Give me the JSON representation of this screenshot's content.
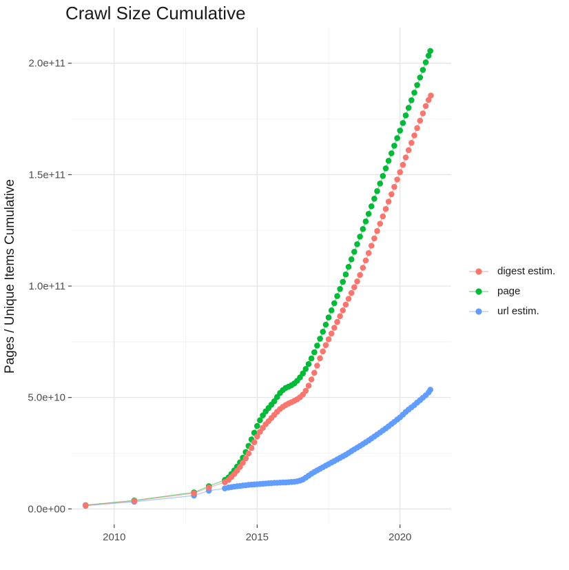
{
  "title": "Crawl Size Cumulative",
  "axes": {
    "x": {
      "domain": [
        2008.51,
        2021.79
      ],
      "ticks": [
        2010,
        2015,
        2020
      ],
      "tick_labels": [
        "2010",
        "2015",
        "2020"
      ],
      "minor_ticks": [
        2012.5,
        2017.5
      ],
      "title": ""
    },
    "y": {
      "domain_billions": [
        -7,
        216
      ],
      "ticks_billions": [
        0,
        50,
        100,
        150,
        200
      ],
      "tick_labels": [
        "0.0e+00",
        "5.0e+10",
        "1.0e+11",
        "1.5e+11",
        "2.0e+11"
      ],
      "minor_ticks_billions": [
        25,
        75,
        125,
        175
      ],
      "title": "Pages / Unique Items Cumulative"
    }
  },
  "legend": {
    "items": [
      {
        "label": "digest estim.",
        "color": "#F8766D"
      },
      {
        "label": "page",
        "color": "#00BA38"
      },
      {
        "label": "url estim.",
        "color": "#619CFF"
      }
    ]
  },
  "chart_data": {
    "type": "line",
    "mark": "point+line",
    "title": "Crawl Size Cumulative",
    "xlabel": "",
    "ylabel": "Pages / Unique Items Cumulative",
    "x_unit": "year",
    "y_unit": "pages / unique items (value = billions, i.e. 1e9)",
    "xlim": [
      2008.51,
      2021.79
    ],
    "ylim_billions": [
      -7,
      216
    ],
    "grid": "major+minor",
    "legend_position": "right",
    "draw_order": [
      "page",
      "url estim.",
      "digest estim."
    ],
    "series": [
      {
        "name": "page",
        "color": "#00BA38",
        "points": [
          [
            2009,
            1.7
          ],
          [
            2010.7,
            3.8
          ],
          [
            2012.79,
            7.4
          ],
          [
            2013.31,
            10.2
          ],
          [
            2013.87,
            13.0
          ],
          [
            2014.0,
            14.2
          ],
          [
            2014.1,
            15.7
          ],
          [
            2014.2,
            17.3
          ],
          [
            2014.3,
            19.0
          ],
          [
            2014.4,
            20.9
          ],
          [
            2014.5,
            23.0
          ],
          [
            2014.6,
            25.5
          ],
          [
            2014.7,
            28.3
          ],
          [
            2014.8,
            31.2
          ],
          [
            2014.9,
            34.2
          ],
          [
            2015.0,
            37.2
          ],
          [
            2015.1,
            39.8
          ],
          [
            2015.2,
            42.0
          ],
          [
            2015.3,
            43.8
          ],
          [
            2015.4,
            45.3
          ],
          [
            2015.5,
            46.8
          ],
          [
            2015.6,
            48.3
          ],
          [
            2015.7,
            50.2
          ],
          [
            2015.8,
            52.0
          ],
          [
            2015.9,
            53.3
          ],
          [
            2016.0,
            54.3
          ],
          [
            2016.1,
            54.9
          ],
          [
            2016.2,
            55.5
          ],
          [
            2016.3,
            56.3
          ],
          [
            2016.4,
            57.5
          ],
          [
            2016.5,
            59.0
          ],
          [
            2016.6,
            60.8
          ],
          [
            2016.7,
            62.8
          ],
          [
            2016.8,
            65.0
          ],
          [
            2016.9,
            67.5
          ],
          [
            2017.0,
            70.3
          ],
          [
            2017.1,
            73.3
          ],
          [
            2017.2,
            76.4
          ],
          [
            2017.3,
            79.5
          ],
          [
            2017.4,
            82.7
          ],
          [
            2017.5,
            85.9
          ],
          [
            2017.6,
            89.1
          ],
          [
            2017.7,
            92.3
          ],
          [
            2017.8,
            95.5
          ],
          [
            2017.9,
            98.7
          ],
          [
            2018.0,
            101.9
          ],
          [
            2018.1,
            105.2
          ],
          [
            2018.2,
            108.6
          ],
          [
            2018.3,
            112.0
          ],
          [
            2018.4,
            115.4
          ],
          [
            2018.5,
            118.8
          ],
          [
            2018.6,
            122.2
          ],
          [
            2018.7,
            125.6
          ],
          [
            2018.8,
            129.0
          ],
          [
            2018.9,
            132.4
          ],
          [
            2019.0,
            135.8
          ],
          [
            2019.1,
            139.2
          ],
          [
            2019.2,
            142.6
          ],
          [
            2019.3,
            146.0
          ],
          [
            2019.4,
            149.4
          ],
          [
            2019.5,
            152.8
          ],
          [
            2019.6,
            156.2
          ],
          [
            2019.7,
            159.6
          ],
          [
            2019.8,
            163.0
          ],
          [
            2019.9,
            166.4
          ],
          [
            2020.0,
            169.8
          ],
          [
            2020.1,
            173.2
          ],
          [
            2020.2,
            176.6
          ],
          [
            2020.3,
            180.0
          ],
          [
            2020.4,
            183.4
          ],
          [
            2020.5,
            186.8
          ],
          [
            2020.6,
            190.2
          ],
          [
            2020.7,
            193.6
          ],
          [
            2020.8,
            197.0
          ],
          [
            2020.9,
            200.4
          ],
          [
            2021.0,
            203.4
          ],
          [
            2021.06,
            205.5
          ]
        ]
      },
      {
        "name": "url estim.",
        "color": "#619CFF",
        "points": [
          [
            2009,
            1.4
          ],
          [
            2010.7,
            3.2
          ],
          [
            2012.79,
            6.0
          ],
          [
            2013.31,
            8.2
          ],
          [
            2013.87,
            9.2
          ],
          [
            2014.0,
            9.6
          ],
          [
            2014.1,
            9.8
          ],
          [
            2014.2,
            10.0
          ],
          [
            2014.3,
            10.2
          ],
          [
            2014.4,
            10.3
          ],
          [
            2014.5,
            10.5
          ],
          [
            2014.6,
            10.6
          ],
          [
            2014.7,
            10.8
          ],
          [
            2014.8,
            10.9
          ],
          [
            2014.9,
            11.0
          ],
          [
            2015.0,
            11.1
          ],
          [
            2015.1,
            11.2
          ],
          [
            2015.2,
            11.3
          ],
          [
            2015.3,
            11.4
          ],
          [
            2015.4,
            11.5
          ],
          [
            2015.5,
            11.6
          ],
          [
            2015.6,
            11.7
          ],
          [
            2015.7,
            11.7
          ],
          [
            2015.8,
            11.8
          ],
          [
            2015.9,
            11.9
          ],
          [
            2016.0,
            11.9
          ],
          [
            2016.1,
            12.0
          ],
          [
            2016.2,
            12.1
          ],
          [
            2016.3,
            12.2
          ],
          [
            2016.4,
            12.4
          ],
          [
            2016.5,
            12.7
          ],
          [
            2016.6,
            13.2
          ],
          [
            2016.7,
            14.0
          ],
          [
            2016.8,
            14.9
          ],
          [
            2016.9,
            15.8
          ],
          [
            2017.0,
            16.6
          ],
          [
            2017.1,
            17.3
          ],
          [
            2017.2,
            18.0
          ],
          [
            2017.3,
            18.7
          ],
          [
            2017.4,
            19.4
          ],
          [
            2017.5,
            20.1
          ],
          [
            2017.6,
            20.8
          ],
          [
            2017.7,
            21.5
          ],
          [
            2017.8,
            22.2
          ],
          [
            2017.9,
            22.9
          ],
          [
            2018.0,
            23.6
          ],
          [
            2018.1,
            24.3
          ],
          [
            2018.2,
            25.1
          ],
          [
            2018.3,
            25.9
          ],
          [
            2018.4,
            26.7
          ],
          [
            2018.5,
            27.5
          ],
          [
            2018.6,
            28.3
          ],
          [
            2018.7,
            29.1
          ],
          [
            2018.8,
            29.9
          ],
          [
            2018.9,
            30.7
          ],
          [
            2019.0,
            31.6
          ],
          [
            2019.1,
            32.5
          ],
          [
            2019.2,
            33.4
          ],
          [
            2019.3,
            34.3
          ],
          [
            2019.4,
            35.2
          ],
          [
            2019.5,
            36.1
          ],
          [
            2019.6,
            37.1
          ],
          [
            2019.7,
            38.1
          ],
          [
            2019.8,
            39.1
          ],
          [
            2019.9,
            40.1
          ],
          [
            2020.0,
            41.1
          ],
          [
            2020.1,
            42.3
          ],
          [
            2020.2,
            43.5
          ],
          [
            2020.3,
            44.6
          ],
          [
            2020.4,
            45.6
          ],
          [
            2020.5,
            46.6
          ],
          [
            2020.6,
            47.7
          ],
          [
            2020.7,
            48.8
          ],
          [
            2020.8,
            49.9
          ],
          [
            2020.9,
            51.0
          ],
          [
            2021.0,
            52.3
          ],
          [
            2021.06,
            53.5
          ]
        ]
      },
      {
        "name": "digest estim.",
        "color": "#F8766D",
        "points": [
          [
            2009,
            1.6
          ],
          [
            2010.7,
            3.6
          ],
          [
            2012.79,
            7.0
          ],
          [
            2013.31,
            9.6
          ],
          [
            2013.87,
            12.0
          ],
          [
            2014.0,
            13.0
          ],
          [
            2014.1,
            14.3
          ],
          [
            2014.2,
            15.7
          ],
          [
            2014.3,
            17.2
          ],
          [
            2014.4,
            18.9
          ],
          [
            2014.5,
            20.7
          ],
          [
            2014.6,
            22.7
          ],
          [
            2014.7,
            24.9
          ],
          [
            2014.8,
            27.3
          ],
          [
            2014.9,
            29.9
          ],
          [
            2015.0,
            32.5
          ],
          [
            2015.1,
            34.6
          ],
          [
            2015.2,
            36.4
          ],
          [
            2015.3,
            38.0
          ],
          [
            2015.4,
            39.4
          ],
          [
            2015.5,
            40.8
          ],
          [
            2015.6,
            42.2
          ],
          [
            2015.7,
            43.6
          ],
          [
            2015.8,
            44.8
          ],
          [
            2015.9,
            45.8
          ],
          [
            2016.0,
            46.6
          ],
          [
            2016.1,
            47.3
          ],
          [
            2016.2,
            47.9
          ],
          [
            2016.3,
            48.5
          ],
          [
            2016.4,
            49.2
          ],
          [
            2016.5,
            50.1
          ],
          [
            2016.6,
            51.3
          ],
          [
            2016.7,
            53.0
          ],
          [
            2016.8,
            55.3
          ],
          [
            2016.9,
            58.1
          ],
          [
            2017.0,
            61.1
          ],
          [
            2017.1,
            64.3
          ],
          [
            2017.2,
            67.6
          ],
          [
            2017.3,
            70.7
          ],
          [
            2017.4,
            73.5
          ],
          [
            2017.5,
            76.1
          ],
          [
            2017.6,
            78.7
          ],
          [
            2017.7,
            81.3
          ],
          [
            2017.8,
            83.9
          ],
          [
            2017.9,
            86.5
          ],
          [
            2018.0,
            89.1
          ],
          [
            2018.1,
            91.7
          ],
          [
            2018.2,
            94.3
          ],
          [
            2018.3,
            96.9
          ],
          [
            2018.4,
            99.5
          ],
          [
            2018.5,
            102.1
          ],
          [
            2018.6,
            105.0
          ],
          [
            2018.7,
            108.2
          ],
          [
            2018.8,
            111.5
          ],
          [
            2018.9,
            114.8
          ],
          [
            2019.0,
            118.1
          ],
          [
            2019.1,
            121.4
          ],
          [
            2019.2,
            124.7
          ],
          [
            2019.3,
            128.0
          ],
          [
            2019.4,
            131.3
          ],
          [
            2019.5,
            134.6
          ],
          [
            2019.6,
            137.9
          ],
          [
            2019.7,
            141.2
          ],
          [
            2019.8,
            144.5
          ],
          [
            2019.9,
            147.8
          ],
          [
            2020.0,
            151.1
          ],
          [
            2020.1,
            154.4
          ],
          [
            2020.2,
            157.7
          ],
          [
            2020.3,
            161.0
          ],
          [
            2020.4,
            164.3
          ],
          [
            2020.5,
            167.6
          ],
          [
            2020.6,
            170.9
          ],
          [
            2020.7,
            174.2
          ],
          [
            2020.8,
            177.5
          ],
          [
            2020.9,
            180.8
          ],
          [
            2021.0,
            183.5
          ],
          [
            2021.08,
            185.5
          ]
        ]
      }
    ]
  }
}
